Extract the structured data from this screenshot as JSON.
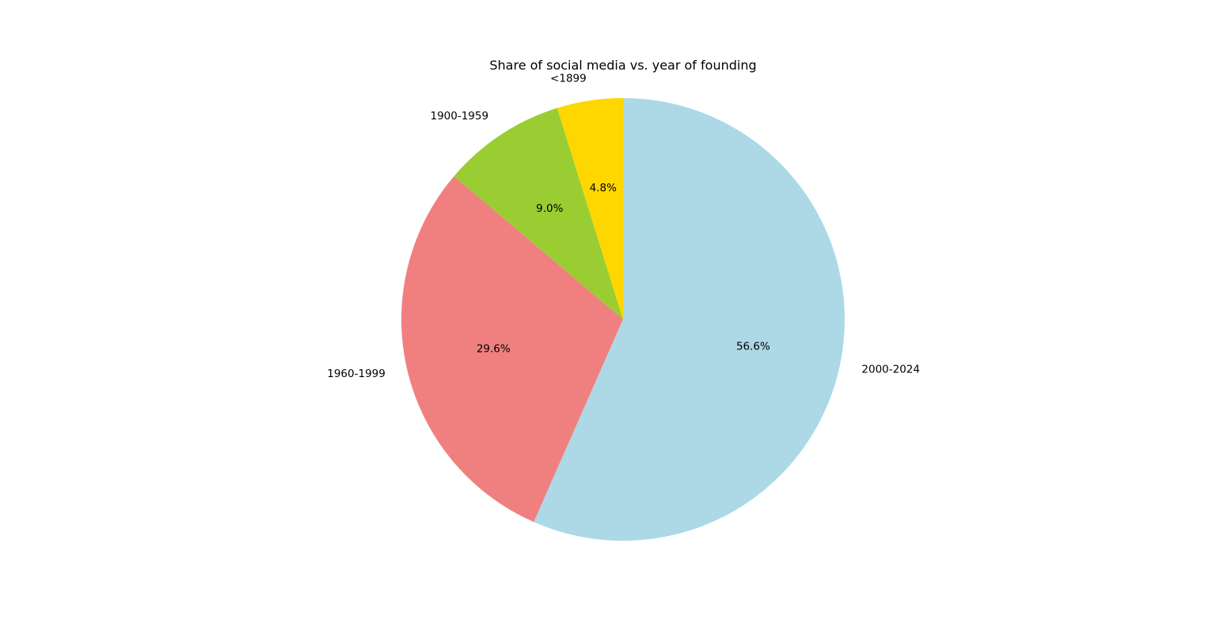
{
  "chart_data": {
    "type": "pie",
    "title": "Share of social media vs. year of founding",
    "slices": [
      {
        "label": "2000-2024",
        "value": 56.6,
        "pct_label": "56.6%",
        "color": "#add8e6"
      },
      {
        "label": "1960-1999",
        "value": 29.6,
        "pct_label": "29.6%",
        "color": "#f08080"
      },
      {
        "label": "1900-1959",
        "value": 9.0,
        "pct_label": "9.0%",
        "color": "#9acd32"
      },
      {
        "label": "<1899",
        "value": 4.8,
        "pct_label": "4.8%",
        "color": "#ffd700"
      }
    ],
    "start_angle_deg": 90,
    "direction": "clockwise"
  }
}
